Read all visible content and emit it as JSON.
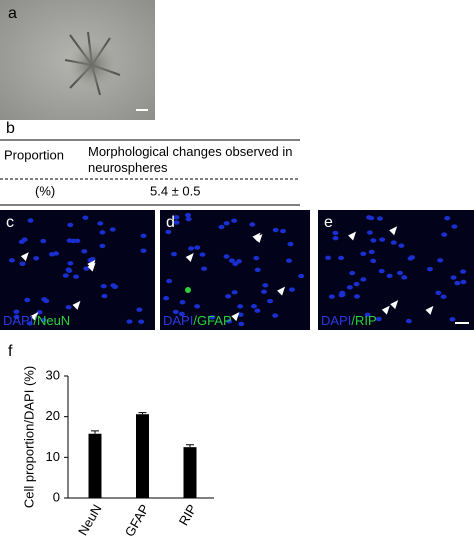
{
  "panel_labels": [
    "a",
    "b",
    "c",
    "d",
    "e",
    "f"
  ],
  "table": {
    "headers": [
      "Proportion",
      "Morphological changes observed in neurospheres"
    ],
    "rows": [
      [
        "(%)",
        "5.4 ± 0.5"
      ]
    ]
  },
  "images": [
    {
      "stain": "DAPI",
      "marker": "/NeuN"
    },
    {
      "stain": "DAPI",
      "marker": "/GFAP"
    },
    {
      "stain": "DAPI",
      "marker": "/RIP"
    }
  ],
  "chart_data": {
    "type": "bar",
    "ylabel": "Cell proportion/DAPI (%)",
    "categories": [
      "NeuN",
      "GFAP",
      "RIP"
    ],
    "values": [
      15.8,
      20.6,
      12.5
    ],
    "errors": [
      0.7,
      0.4,
      0.6
    ],
    "color": "#000000",
    "ylim": [
      0,
      30
    ],
    "yticks": [
      0,
      10,
      20,
      30
    ]
  }
}
